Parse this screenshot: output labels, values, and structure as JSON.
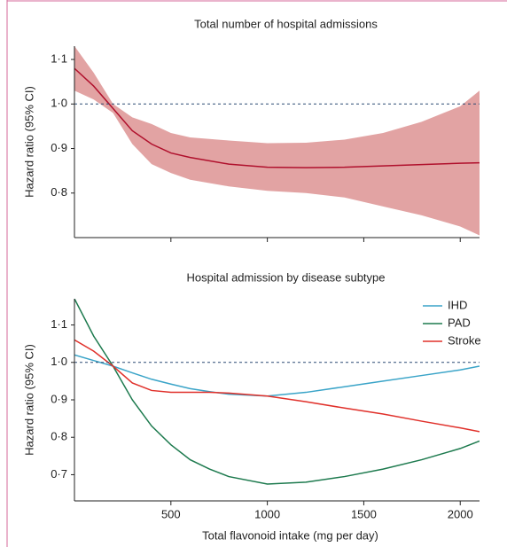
{
  "chart_data": [
    {
      "type": "line",
      "title": "Total number of hospital admissions",
      "ylabel": "Hazard ratio (95% CI)",
      "x": [
        0,
        100,
        200,
        300,
        400,
        500,
        600,
        800,
        1000,
        1200,
        1400,
        1600,
        1800,
        2000,
        2100
      ],
      "series": [
        {
          "color": "#b0102c",
          "band_color": "#e2a3a3",
          "values": [
            1.08,
            1.04,
            0.99,
            0.94,
            0.91,
            0.89,
            0.88,
            0.865,
            0.858,
            0.857,
            0.858,
            0.861,
            0.864,
            0.867,
            0.868
          ],
          "ci_upper": [
            1.13,
            1.07,
            1.0,
            0.97,
            0.955,
            0.935,
            0.925,
            0.918,
            0.912,
            0.913,
            0.92,
            0.935,
            0.96,
            0.995,
            1.03
          ],
          "ci_lower": [
            1.03,
            1.01,
            0.98,
            0.91,
            0.865,
            0.845,
            0.83,
            0.815,
            0.805,
            0.8,
            0.79,
            0.77,
            0.75,
            0.725,
            0.705
          ]
        }
      ],
      "xlim": [
        0,
        2100
      ],
      "xticks": [
        500,
        1000,
        1500,
        2000
      ],
      "ylim": [
        0.7,
        1.13
      ],
      "yticks": [
        {
          "value": 0.8,
          "label": "0·8"
        },
        {
          "value": 0.9,
          "label": "0·9"
        },
        {
          "value": 1.0,
          "label": "1·0"
        },
        {
          "value": 1.1,
          "label": "1·1"
        }
      ],
      "reference_line": 1.0
    },
    {
      "type": "line",
      "title": "Hospital admission by disease subtype",
      "ylabel": "Hazard ratio (95% CI)",
      "xlabel": "Total flavonoid intake (mg per day)",
      "x": [
        0,
        100,
        200,
        300,
        400,
        500,
        600,
        700,
        800,
        1000,
        1200,
        1400,
        1600,
        1800,
        2000,
        2100
      ],
      "series": [
        {
          "name": "IHD",
          "color": "#3aa4c8",
          "values": [
            1.02,
            1.005,
            0.99,
            0.972,
            0.955,
            0.942,
            0.93,
            0.922,
            0.915,
            0.91,
            0.92,
            0.935,
            0.95,
            0.965,
            0.98,
            0.99
          ]
        },
        {
          "name": "PAD",
          "color": "#1d7a4e",
          "values": [
            1.17,
            1.07,
            0.99,
            0.9,
            0.83,
            0.78,
            0.74,
            0.715,
            0.695,
            0.675,
            0.68,
            0.695,
            0.715,
            0.74,
            0.77,
            0.79
          ]
        },
        {
          "name": "Stroke",
          "color": "#e0302a",
          "values": [
            1.06,
            1.03,
            0.99,
            0.945,
            0.925,
            0.92,
            0.92,
            0.92,
            0.918,
            0.91,
            0.895,
            0.878,
            0.862,
            0.843,
            0.825,
            0.815
          ]
        }
      ],
      "xlim": [
        0,
        2100
      ],
      "xticks": [
        500,
        1000,
        1500,
        2000
      ],
      "ylim": [
        0.63,
        1.17
      ],
      "yticks": [
        {
          "value": 0.7,
          "label": "0·7"
        },
        {
          "value": 0.8,
          "label": "0·8"
        },
        {
          "value": 0.9,
          "label": "0·9"
        },
        {
          "value": 1.0,
          "label": "1·0"
        },
        {
          "value": 1.1,
          "label": "1·1"
        }
      ],
      "reference_line": 1.0,
      "legend": "upper right"
    }
  ]
}
